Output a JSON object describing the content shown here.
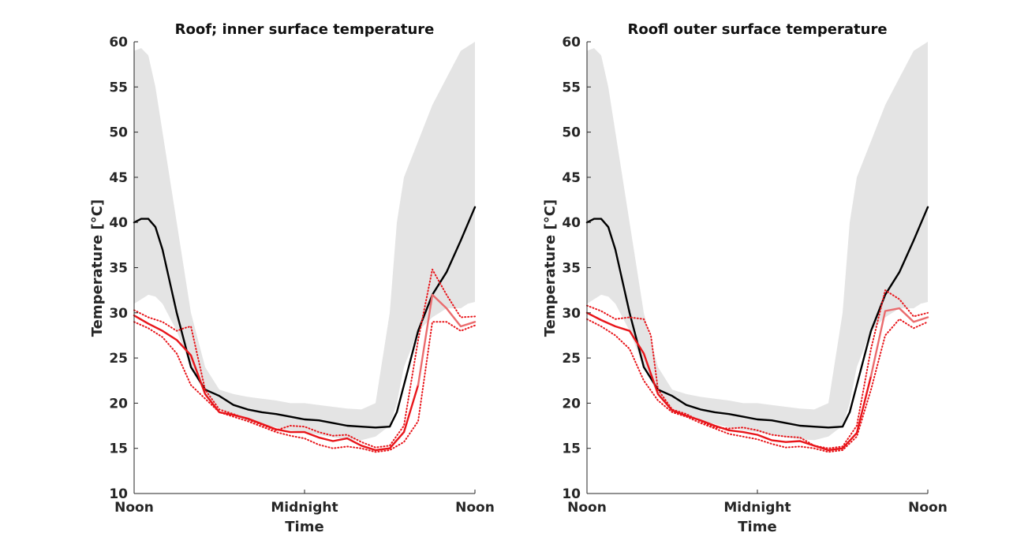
{
  "chart_data": [
    {
      "type": "line",
      "title": "Roof; inner surface temperature",
      "xlabel": "Time",
      "ylabel": "Temperature [°C]",
      "ylim": [
        10,
        60
      ],
      "yticks": [
        10,
        15,
        20,
        25,
        30,
        35,
        40,
        45,
        50,
        55,
        60
      ],
      "xticks": [
        0,
        12,
        24
      ],
      "xticklabels": [
        "Noon",
        "Midnight",
        "Noon"
      ],
      "x_unit": "hours since noon",
      "grid": false,
      "colors": {
        "band": "#e4e4e4",
        "black": "#000000",
        "red": "#e8151a",
        "red_light": "#ea6b6d"
      },
      "band": {
        "x": [
          0,
          0.5,
          1,
          1.5,
          2,
          3,
          4,
          5,
          6,
          7,
          8,
          9,
          10,
          11,
          12,
          13,
          14,
          15,
          16,
          17,
          18,
          18.5,
          19,
          20,
          21,
          22,
          23,
          23.5,
          24
        ],
        "upper": [
          59,
          59.3,
          58.5,
          55,
          50,
          40,
          30,
          24,
          21.5,
          21,
          20.7,
          20.5,
          20.3,
          20,
          20,
          19.8,
          19.6,
          19.4,
          19.3,
          20,
          30,
          40,
          45,
          49,
          53,
          56,
          59,
          59.5,
          60
        ],
        "lower": [
          31,
          31.5,
          32,
          31.8,
          31,
          28,
          24,
          21,
          19.3,
          18.6,
          18,
          17.7,
          17.3,
          17,
          16.8,
          16.5,
          16.2,
          16,
          15.9,
          16.3,
          17.5,
          20,
          24,
          28,
          29.5,
          30.5,
          30.5,
          31,
          31.2
        ]
      },
      "series": [
        {
          "color": "black",
          "style": "solid",
          "x": [
            0,
            0.5,
            1,
            1.5,
            2,
            3,
            4,
            5,
            6,
            7,
            8,
            9,
            10,
            11,
            12,
            13,
            14,
            15,
            16,
            17,
            18,
            18.5,
            19,
            20,
            21,
            22,
            23,
            24
          ],
          "y": [
            40,
            40.4,
            40.4,
            39.5,
            37,
            30,
            24,
            21.5,
            20.8,
            19.8,
            19.3,
            19,
            18.8,
            18.5,
            18.2,
            18.1,
            17.8,
            17.5,
            17.4,
            17.3,
            17.4,
            19,
            22,
            28,
            32,
            34.5,
            38,
            41.7
          ]
        },
        {
          "color": "red",
          "style": "solid",
          "x": [
            0,
            1,
            2,
            3,
            4,
            5,
            6,
            7,
            8,
            9,
            10,
            11,
            12,
            13,
            14,
            15,
            16,
            17,
            18,
            19,
            20
          ],
          "y": [
            29.7,
            28.8,
            28,
            27,
            25.3,
            21,
            19,
            18.7,
            18.3,
            17.7,
            17.1,
            16.8,
            16.8,
            16.2,
            15.8,
            16.1,
            15.3,
            14.8,
            15,
            16.8,
            22
          ]
        },
        {
          "color": "red_light",
          "style": "solid",
          "x": [
            20,
            21,
            22,
            23,
            24
          ],
          "y": [
            22,
            32,
            30.5,
            28.5,
            29
          ]
        },
        {
          "color": "red",
          "style": "dotted",
          "x": [
            0,
            1,
            2,
            3,
            3.5,
            4,
            5,
            6,
            7,
            8,
            9,
            10,
            11,
            12,
            13,
            14,
            15,
            16,
            17,
            18,
            19,
            20,
            21,
            22,
            23,
            24
          ],
          "y": [
            30.3,
            29.5,
            29,
            28,
            28.3,
            28.5,
            21.5,
            19.3,
            18.8,
            18.2,
            17.6,
            17,
            17.5,
            17.4,
            16.8,
            16.4,
            16.5,
            15.7,
            15.1,
            15.3,
            17.5,
            27,
            34.8,
            32,
            29.5,
            29.6
          ]
        },
        {
          "color": "red",
          "style": "dotted",
          "x": [
            0,
            1,
            2,
            3,
            4,
            5,
            6,
            7,
            8,
            9,
            10,
            11,
            12,
            13,
            14,
            15,
            16,
            17,
            18,
            19,
            20,
            21,
            22,
            23,
            24
          ],
          "y": [
            29,
            28.3,
            27.3,
            25.5,
            22,
            20.5,
            19,
            18.5,
            18,
            17.4,
            16.8,
            16.4,
            16.1,
            15.4,
            15,
            15.2,
            15,
            14.6,
            14.8,
            15.7,
            18,
            29,
            29,
            28,
            28.6
          ]
        }
      ]
    },
    {
      "type": "line",
      "title": "Roofl outer surface temperature",
      "xlabel": "Time",
      "ylabel": "Temperature [°C]",
      "ylim": [
        10,
        60
      ],
      "yticks": [
        10,
        15,
        20,
        25,
        30,
        35,
        40,
        45,
        50,
        55,
        60
      ],
      "xticks": [
        0,
        12,
        24
      ],
      "xticklabels": [
        "Noon",
        "Midnight",
        "Noon"
      ],
      "x_unit": "hours since noon",
      "grid": false,
      "colors": {
        "band": "#e4e4e4",
        "black": "#000000",
        "red": "#e8151a",
        "red_light": "#ea6b6d"
      },
      "band": {
        "x": [
          0,
          0.5,
          1,
          1.5,
          2,
          3,
          4,
          5,
          6,
          7,
          8,
          9,
          10,
          11,
          12,
          13,
          14,
          15,
          16,
          17,
          18,
          18.5,
          19,
          20,
          21,
          22,
          23,
          23.5,
          24
        ],
        "upper": [
          59,
          59.3,
          58.5,
          55,
          50,
          40,
          30,
          24,
          21.5,
          21,
          20.7,
          20.5,
          20.3,
          20,
          20,
          19.8,
          19.6,
          19.4,
          19.3,
          20,
          30,
          40,
          45,
          49,
          53,
          56,
          59,
          59.5,
          60
        ],
        "lower": [
          31,
          31.5,
          32,
          31.8,
          31,
          28,
          24,
          21,
          19.3,
          18.6,
          18,
          17.7,
          17.3,
          17,
          16.8,
          16.5,
          16.2,
          16,
          15.9,
          16.3,
          17.5,
          20,
          24,
          28,
          29.5,
          30.5,
          30.5,
          31,
          31.2
        ]
      },
      "series": [
        {
          "color": "black",
          "style": "solid",
          "x": [
            0,
            0.5,
            1,
            1.5,
            2,
            3,
            4,
            5,
            6,
            7,
            8,
            9,
            10,
            11,
            12,
            13,
            14,
            15,
            16,
            17,
            18,
            18.5,
            19,
            20,
            21,
            22,
            23,
            24
          ],
          "y": [
            40,
            40.4,
            40.4,
            39.5,
            37,
            30,
            24,
            21.5,
            20.8,
            19.8,
            19.3,
            19,
            18.8,
            18.5,
            18.2,
            18.1,
            17.8,
            17.5,
            17.4,
            17.3,
            17.4,
            19,
            22,
            28,
            32,
            34.5,
            38,
            41.7
          ]
        },
        {
          "color": "red",
          "style": "solid",
          "x": [
            0,
            1,
            2,
            3,
            4,
            5,
            6,
            7,
            8,
            9,
            10,
            11,
            12,
            13,
            14,
            15,
            16,
            17,
            18,
            19,
            20
          ],
          "y": [
            30,
            29.2,
            28.5,
            28,
            25.5,
            21,
            19.2,
            18.6,
            18.1,
            17.5,
            17,
            16.8,
            16.5,
            15.9,
            15.7,
            15.8,
            15.3,
            14.8,
            15,
            16.7,
            23
          ]
        },
        {
          "color": "red_light",
          "style": "solid",
          "x": [
            20,
            21,
            22,
            23,
            24
          ],
          "y": [
            23,
            30.2,
            30.5,
            29,
            29.5
          ]
        },
        {
          "color": "red",
          "style": "dotted",
          "x": [
            0,
            1,
            2,
            3,
            4,
            4.5,
            5,
            6,
            7,
            8,
            9,
            10,
            11,
            12,
            13,
            14,
            15,
            16,
            17,
            18,
            19,
            20,
            21,
            22,
            23,
            24
          ],
          "y": [
            30.8,
            30.2,
            29.3,
            29.5,
            29.3,
            27.5,
            21.5,
            19.3,
            18.8,
            18,
            17.3,
            17.2,
            17.3,
            17,
            16.5,
            16.3,
            16.2,
            15.3,
            15,
            15.2,
            17.5,
            26,
            32.5,
            31.5,
            29.6,
            30
          ]
        },
        {
          "color": "red",
          "style": "dotted",
          "x": [
            0,
            1,
            2,
            3,
            4,
            5,
            6,
            7,
            8,
            9,
            10,
            11,
            12,
            13,
            14,
            15,
            16,
            17,
            18,
            19,
            20,
            21,
            22,
            23,
            24
          ],
          "y": [
            29.3,
            28.5,
            27.5,
            26,
            22.5,
            20.3,
            19,
            18.5,
            17.8,
            17.2,
            16.6,
            16.3,
            16,
            15.5,
            15.1,
            15.2,
            15,
            14.6,
            14.8,
            16.3,
            21.5,
            27.5,
            29.3,
            28.3,
            29
          ]
        }
      ]
    }
  ]
}
